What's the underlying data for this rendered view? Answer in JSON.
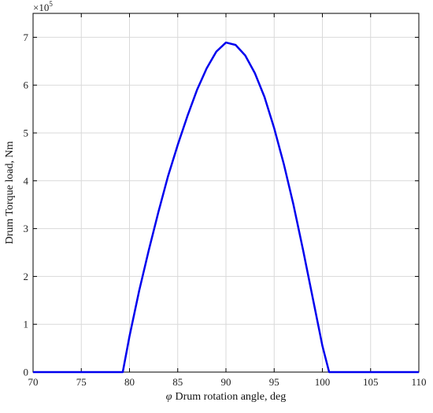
{
  "chart_data": {
    "type": "line",
    "title": "",
    "xlabel_symbol": "φ",
    "xlabel": "Drum rotation angle, deg",
    "ylabel": "Drum Torque load, Nm",
    "y_multiplier": "×10",
    "y_exponent": "5",
    "xlim": [
      70,
      110
    ],
    "ylim": [
      0,
      7.5
    ],
    "xticks": [
      "70",
      "75",
      "80",
      "85",
      "90",
      "95",
      "100",
      "105",
      "110"
    ],
    "yticks": [
      "0",
      "1",
      "2",
      "3",
      "4",
      "5",
      "6",
      "7"
    ],
    "grid": true,
    "line_color": "#0000ee",
    "series": [
      {
        "x": [
          70,
          79.3,
          80,
          81,
          82,
          83,
          84,
          85,
          86,
          87,
          88,
          89,
          90,
          91,
          92,
          93,
          94,
          95,
          96,
          97,
          98,
          99,
          100,
          100.7,
          110
        ],
        "y": [
          0,
          0,
          0.75,
          1.7,
          2.55,
          3.35,
          4.1,
          4.75,
          5.35,
          5.9,
          6.35,
          6.7,
          6.89,
          6.84,
          6.62,
          6.25,
          5.75,
          5.1,
          4.35,
          3.5,
          2.55,
          1.55,
          0.55,
          0,
          0
        ]
      }
    ]
  }
}
